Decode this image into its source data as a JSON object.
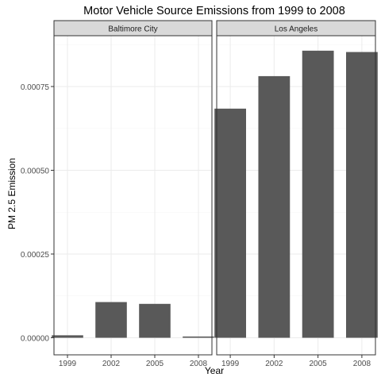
{
  "chart_data": {
    "type": "bar",
    "title": "Motor Vehicle Source Emissions from 1999 to 2008",
    "xlabel": "Year",
    "ylabel": "PM 2.5 Emission",
    "categories": [
      "1999",
      "2002",
      "2005",
      "2008"
    ],
    "ylim": [
      0,
      0.00088
    ],
    "yticks": [
      0,
      0.00025,
      0.0005,
      0.00075
    ],
    "ytick_labels": [
      "0.00000",
      "0.00025",
      "0.00050",
      "0.00075"
    ],
    "grid": true,
    "facets": [
      {
        "name": "Baltimore City",
        "values": [
          7.4e-06,
          0.0001066,
          0.0001012,
          3.8e-06
        ]
      },
      {
        "name": "Los Angeles",
        "values": [
          0.000684,
          0.000781,
          0.000857,
          0.000853
        ]
      }
    ],
    "colors": {
      "bar": "#595959",
      "strip_fill": "#d9d9d9",
      "panel_border": "#333333",
      "grid_major": "#ebebeb",
      "grid_minor": "#f5f5f5"
    }
  }
}
